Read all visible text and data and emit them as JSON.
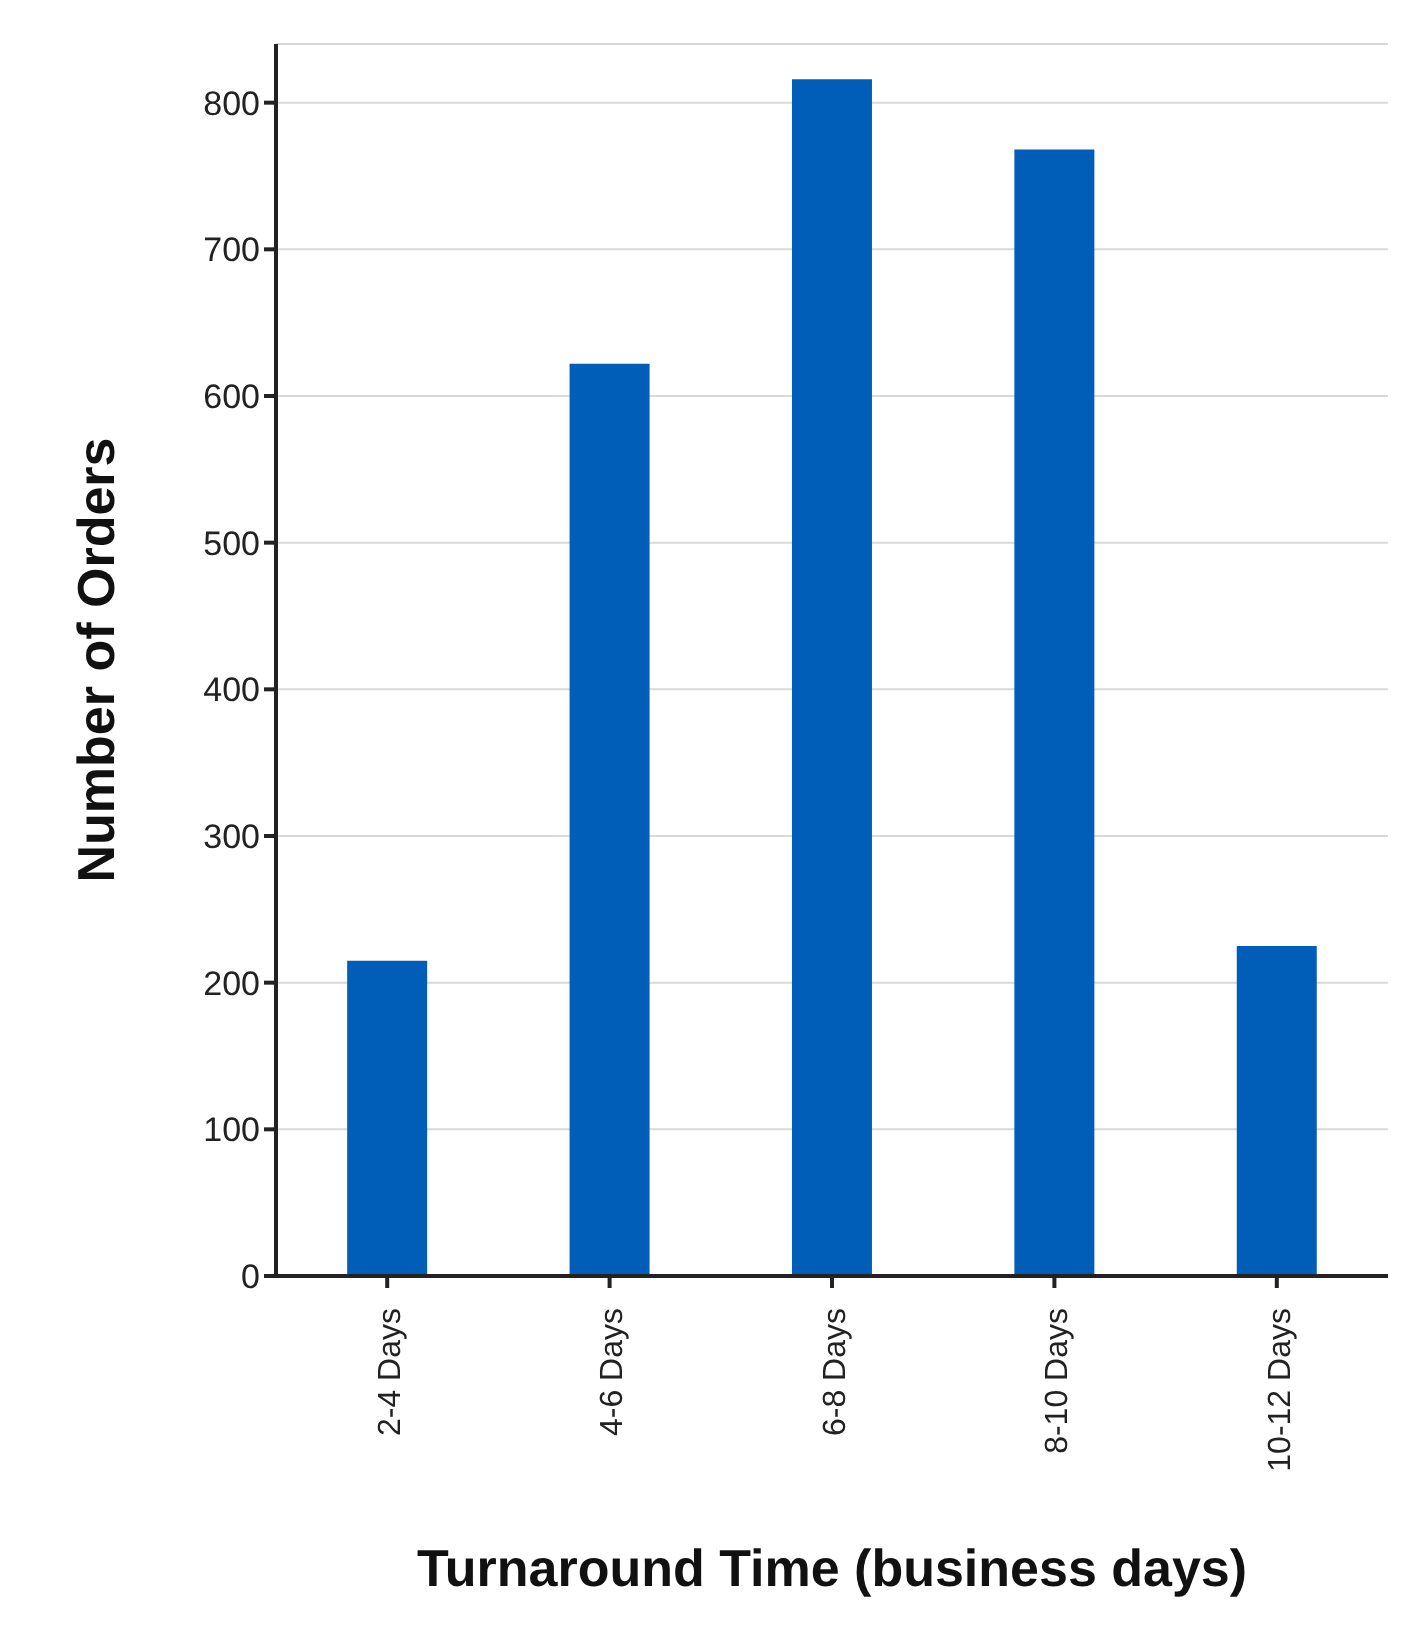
{
  "chart_data": {
    "type": "bar",
    "xlabel": "Turnaround Time (business days)",
    "ylabel": "Number of Orders",
    "categories": [
      "2-4 Days",
      "4-6 Days",
      "6-8 Days",
      "8-10 Days",
      "10-12 Days"
    ],
    "values": [
      215,
      622,
      816,
      768,
      225
    ],
    "color": "#005eb8",
    "ylim": [
      0,
      840
    ],
    "yticks": [
      0,
      100,
      200,
      300,
      400,
      500,
      600,
      700,
      800
    ],
    "grid": "y"
  }
}
